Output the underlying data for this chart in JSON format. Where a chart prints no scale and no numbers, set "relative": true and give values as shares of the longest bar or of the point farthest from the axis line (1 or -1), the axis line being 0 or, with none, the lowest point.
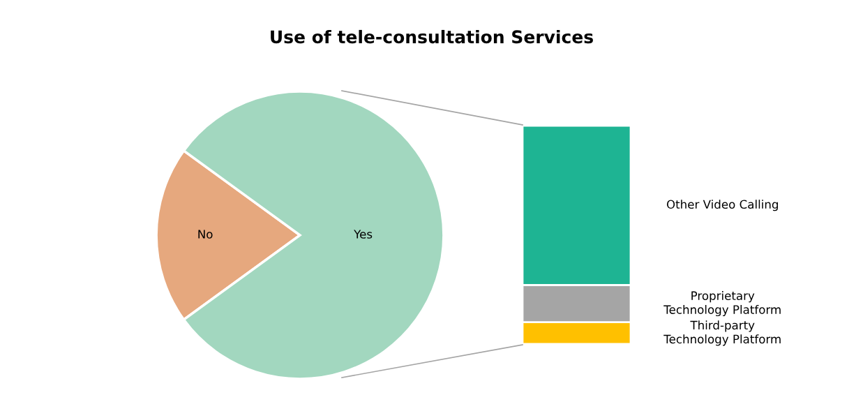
{
  "chart_data": [
    {
      "type": "pie",
      "title": "Use of tele-consultation Services",
      "categories": [
        "No",
        "Yes"
      ],
      "values": [
        20,
        80
      ],
      "colors": [
        "#e6a87e",
        "#a2d7bf"
      ]
    },
    {
      "type": "bar",
      "stacked": true,
      "relative": true,
      "categories": [
        null
      ],
      "series": [
        {
          "name": "Third-party\nTechnology Platform",
          "color": "#ffc000",
          "values": [
            0.1
          ]
        },
        {
          "name": "Proprietary\nTechnology Platform",
          "color": "#a5a5a5",
          "values": [
            0.17
          ]
        },
        {
          "name": "Other Video Calling",
          "color": "#1eb493",
          "values": [
            0.73
          ]
        }
      ]
    }
  ]
}
